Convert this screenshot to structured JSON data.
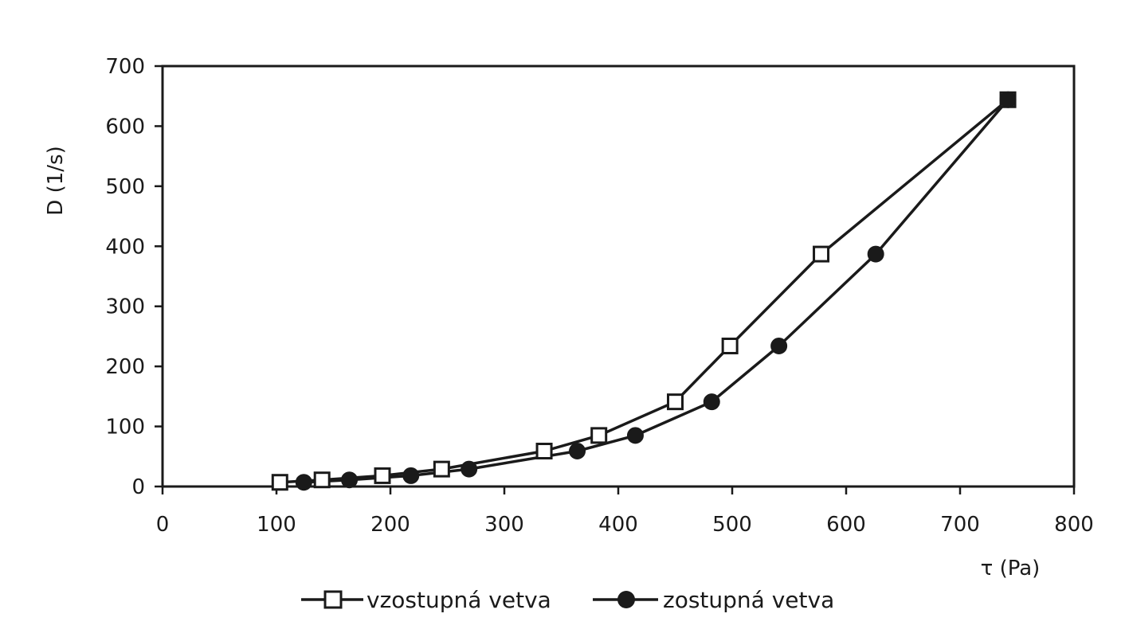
{
  "chart_data": {
    "type": "line",
    "title": "",
    "xlabel": "τ (Pa)",
    "ylabel": "D (1/s)",
    "xlim": [
      0,
      800
    ],
    "ylim": [
      0,
      700
    ],
    "xticks": [
      "0",
      "100",
      "200",
      "300",
      "400",
      "500",
      "600",
      "700",
      "800"
    ],
    "yticks": [
      "0",
      "100",
      "200",
      "300",
      "400",
      "500",
      "600",
      "700"
    ],
    "grid": false,
    "legend": "bottom",
    "series": [
      {
        "name": "vzostupná vetva",
        "marker": "open-square",
        "x": [
          103,
          140,
          193,
          245,
          335,
          383,
          450,
          498,
          578,
          742
        ],
        "y": [
          7,
          11,
          18,
          29,
          59,
          85,
          141,
          234,
          387,
          644
        ]
      },
      {
        "name": "zostupná vetva",
        "marker": "filled-circle",
        "x": [
          124,
          164,
          218,
          269,
          364,
          415,
          482,
          541,
          626,
          742
        ],
        "y": [
          7,
          11,
          18,
          29,
          59,
          85,
          141,
          234,
          387,
          644
        ]
      }
    ],
    "colors": {
      "line": "#1a1a1a",
      "marker_fill_open": "#ffffff",
      "marker_fill_solid": "#1a1a1a"
    }
  }
}
